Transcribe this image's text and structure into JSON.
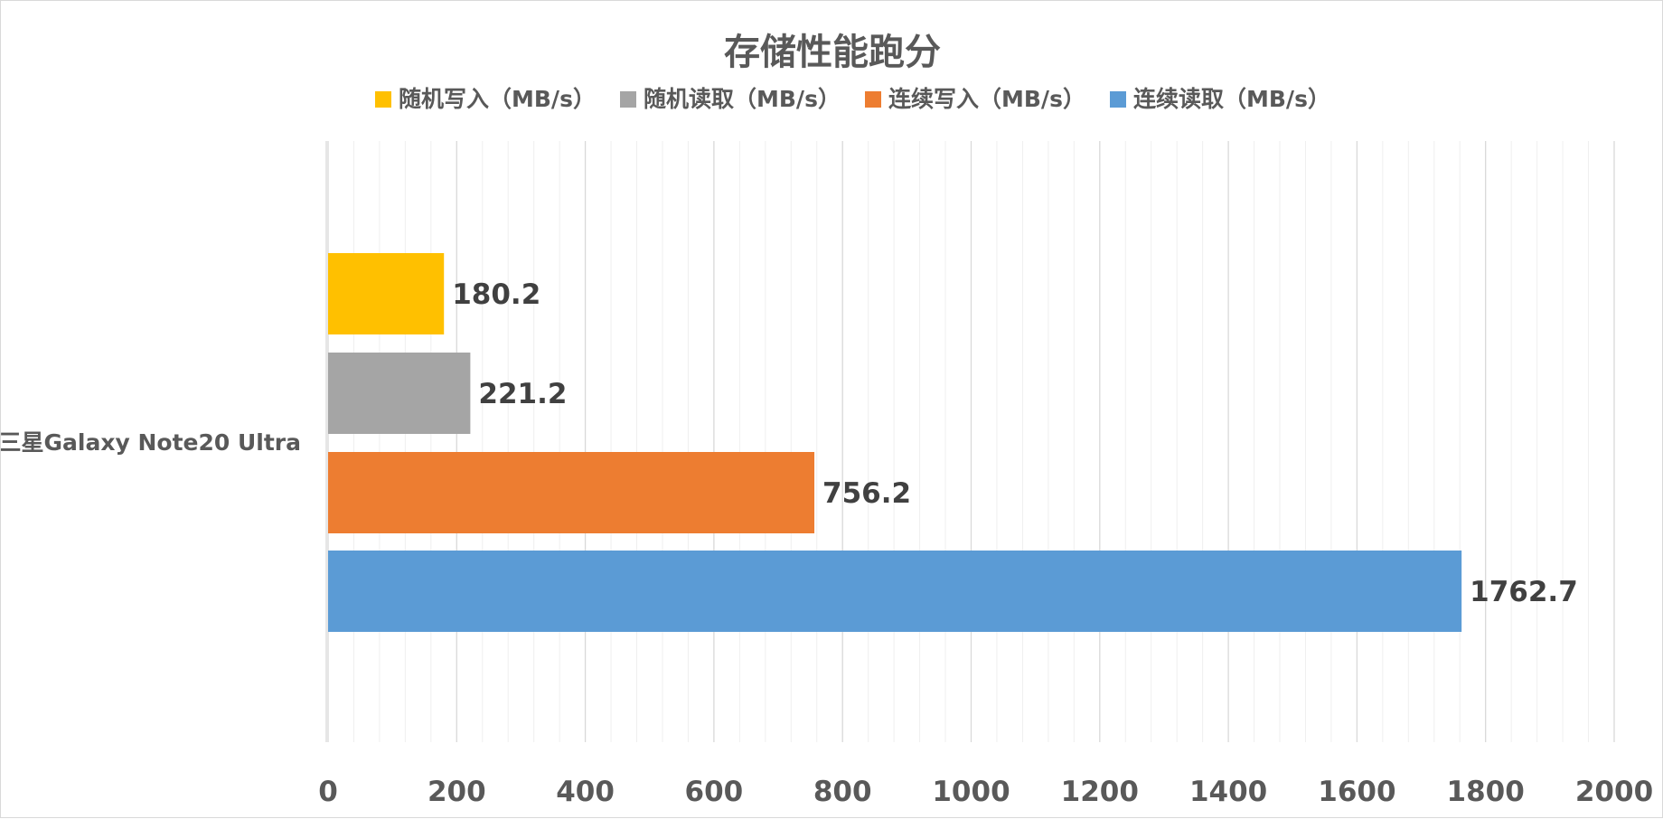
{
  "chart_data": {
    "type": "bar",
    "orientation": "horizontal",
    "title": "存储性能跑分",
    "categories": [
      "三星Galaxy Note20 Ultra"
    ],
    "series": [
      {
        "name": "随机写入（MB/s）",
        "color": "#FFC000",
        "values": [
          180.2
        ],
        "label": "180.2"
      },
      {
        "name": "随机读取（MB/s）",
        "color": "#A5A5A5",
        "values": [
          221.2
        ],
        "label": "221.2"
      },
      {
        "name": "连续写入（MB/s）",
        "color": "#ED7D31",
        "values": [
          756.2
        ],
        "label": "756.2"
      },
      {
        "name": "连续读取（MB/s）",
        "color": "#5B9BD5",
        "values": [
          1762.7
        ],
        "label": "1762.7"
      }
    ],
    "xlim": [
      0,
      2000
    ],
    "x_major_step": 200,
    "x_minor_step": 40,
    "x_ticks": [
      "0",
      "200",
      "400",
      "600",
      "800",
      "1000",
      "1200",
      "1400",
      "1600",
      "1800",
      "2000"
    ],
    "grid": true,
    "legend_position": "top"
  }
}
